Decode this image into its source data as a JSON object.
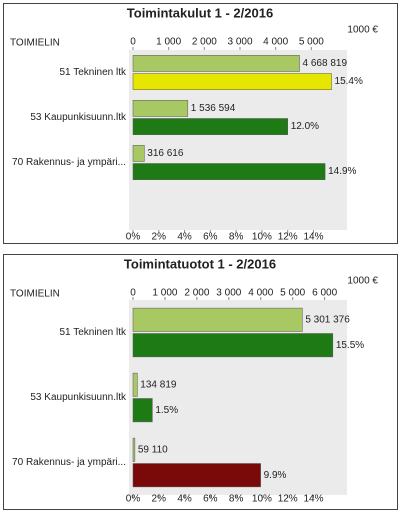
{
  "chart_data": [
    {
      "type": "bar",
      "orientation": "horizontal",
      "title": "Toimintakulut 1 - 2/2016",
      "y_label": "TOIMIELIN",
      "x2_label": "1000 €",
      "categories": [
        "51 Tekninen ltk",
        "53 Kaupunkisuunn.ltk",
        "70 Rakennus- ja ympäri..."
      ],
      "series": [
        {
          "axis": "x2",
          "color": "#a8c864",
          "values": [
            4668.819,
            1536.594,
            316.616
          ],
          "value_labels": [
            "4 668 819",
            "1 536 594",
            "316 616"
          ]
        },
        {
          "colors": [
            "#e6e600",
            "#1e7a14",
            "#1e7a14"
          ],
          "values": [
            15.4,
            12.0,
            14.9
          ],
          "value_labels": [
            "15.4%",
            "12.0%",
            "14.9%"
          ]
        }
      ],
      "xlim": [
        0,
        16.6
      ],
      "xticks": [
        {
          "value": 0,
          "label": "0%"
        },
        {
          "value": 2,
          "label": "2%"
        },
        {
          "value": 4,
          "label": "4%"
        },
        {
          "value": 6,
          "label": "6%"
        },
        {
          "value": 8,
          "label": "8%"
        },
        {
          "value": 10,
          "label": "10%"
        },
        {
          "value": 12,
          "label": "12%"
        },
        {
          "value": 14,
          "label": "14%"
        }
      ],
      "x2lim": [
        0,
        6000
      ],
      "x2ticks": [
        0,
        {
          "value": 1000,
          "label": "1 000"
        },
        {
          "value": 2000,
          "label": "2 000"
        },
        {
          "value": 3000,
          "label": "3 000"
        },
        {
          "value": 4000,
          "label": "4 000"
        },
        {
          "value": 5000,
          "label": "5 000"
        }
      ]
    },
    {
      "type": "bar",
      "orientation": "horizontal",
      "title": "Toimintatuotot 1 - 2/2016",
      "y_label": "TOIMIELIN",
      "x2_label": "1000 €",
      "categories": [
        "51 Tekninen ltk",
        "53 Kaupunkisuunn.ltk",
        "70 Rakennus- ja ympäri..."
      ],
      "series": [
        {
          "axis": "x2",
          "color": "#a8c864",
          "values": [
            5301.376,
            134.819,
            59.11
          ],
          "value_labels": [
            "5 301 376",
            "134 819",
            "59 110"
          ]
        },
        {
          "colors": [
            "#1e7a14",
            "#1e7a14",
            "#7a0a0a"
          ],
          "values": [
            15.5,
            1.5,
            9.9
          ],
          "value_labels": [
            "15.5%",
            "1.5%",
            "9.9%"
          ]
        }
      ],
      "xlim": [
        0,
        16.6
      ],
      "xticks": [
        {
          "value": 0,
          "label": "0%"
        },
        {
          "value": 2,
          "label": "2%"
        },
        {
          "value": 4,
          "label": "4%"
        },
        {
          "value": 6,
          "label": "6%"
        },
        {
          "value": 8,
          "label": "8%"
        },
        {
          "value": 10,
          "label": "10%"
        },
        {
          "value": 12,
          "label": "12%"
        },
        {
          "value": 14,
          "label": "14%"
        }
      ],
      "x2lim": [
        0,
        6700
      ],
      "x2ticks": [
        0,
        {
          "value": 1000,
          "label": "1 000"
        },
        {
          "value": 2000,
          "label": "2 000"
        },
        {
          "value": 3000,
          "label": "3 000"
        },
        {
          "value": 4000,
          "label": "4 000"
        },
        {
          "value": 5000,
          "label": "5 000"
        },
        {
          "value": 6000,
          "label": "6 000"
        }
      ]
    }
  ]
}
